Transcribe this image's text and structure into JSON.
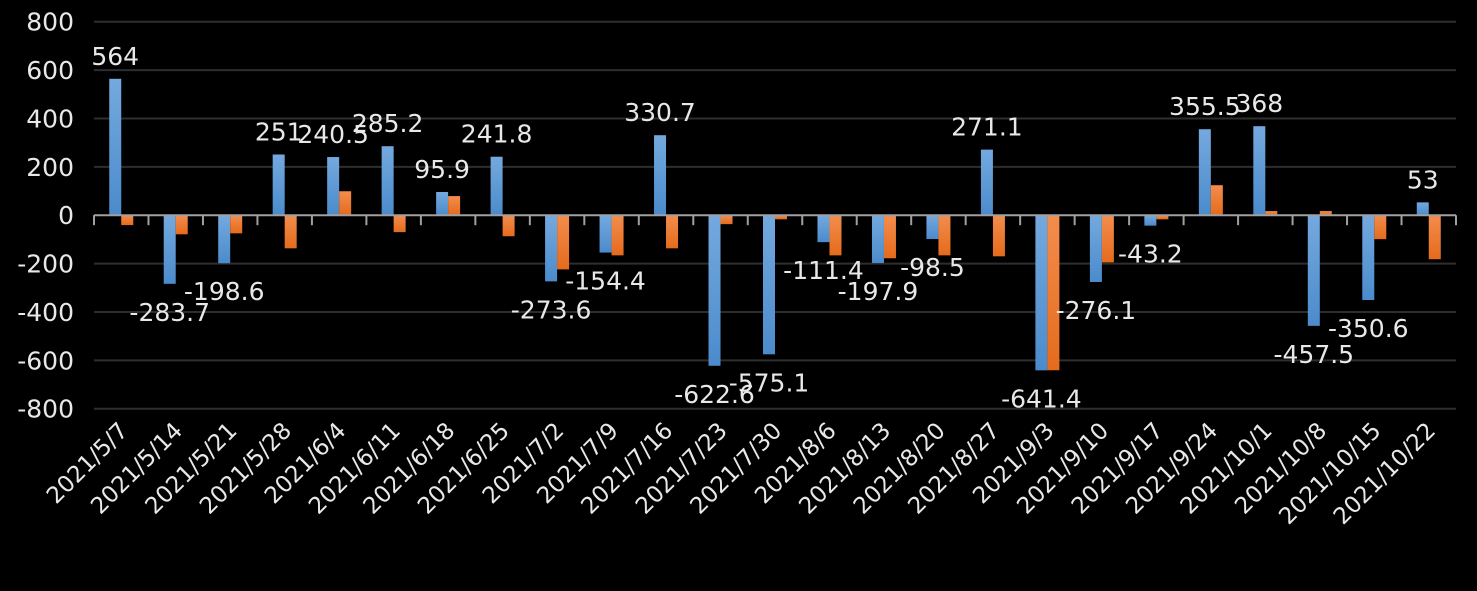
{
  "chart_data": {
    "type": "bar",
    "title": "",
    "xlabel": "",
    "ylabel": "",
    "ylim": [
      -800,
      800
    ],
    "yticks": [
      800,
      600,
      400,
      200,
      0,
      -200,
      -400,
      -600,
      -800
    ],
    "grid": true,
    "legend": "none",
    "categories": [
      "2021/5/7",
      "2021/5/14",
      "2021/5/21",
      "2021/5/28",
      "2021/6/4",
      "2021/6/11",
      "2021/6/18",
      "2021/6/25",
      "2021/7/2",
      "2021/7/9",
      "2021/7/16",
      "2021/7/23",
      "2021/7/30",
      "2021/8/6",
      "2021/8/13",
      "2021/8/20",
      "2021/8/27",
      "2021/9/3",
      "2021/9/10",
      "2021/9/17",
      "2021/9/24",
      "2021/10/1",
      "2021/10/8",
      "2021/10/15",
      "2021/10/22"
    ],
    "series": [
      {
        "color": "#5b9bd5",
        "data_labels": true,
        "values": [
          564,
          -283.7,
          -198.6,
          251,
          240.5,
          285.2,
          95.9,
          241.8,
          -273.6,
          -154.4,
          330.7,
          -622.6,
          -575.1,
          -111.4,
          -197.9,
          -98.5,
          271.1,
          -641.4,
          -276.1,
          -43.2,
          355.5,
          368,
          -457.5,
          -350.6,
          53
        ]
      },
      {
        "color": "#ed7d31",
        "data_labels": false,
        "values": [
          -41,
          -79,
          -75,
          -137,
          99,
          -70,
          79,
          -87,
          -224,
          -166,
          -137,
          -37,
          -17,
          -166,
          -178,
          -166,
          -170,
          -641,
          -195,
          -17,
          124,
          17,
          17,
          -99,
          -182
        ]
      }
    ]
  }
}
